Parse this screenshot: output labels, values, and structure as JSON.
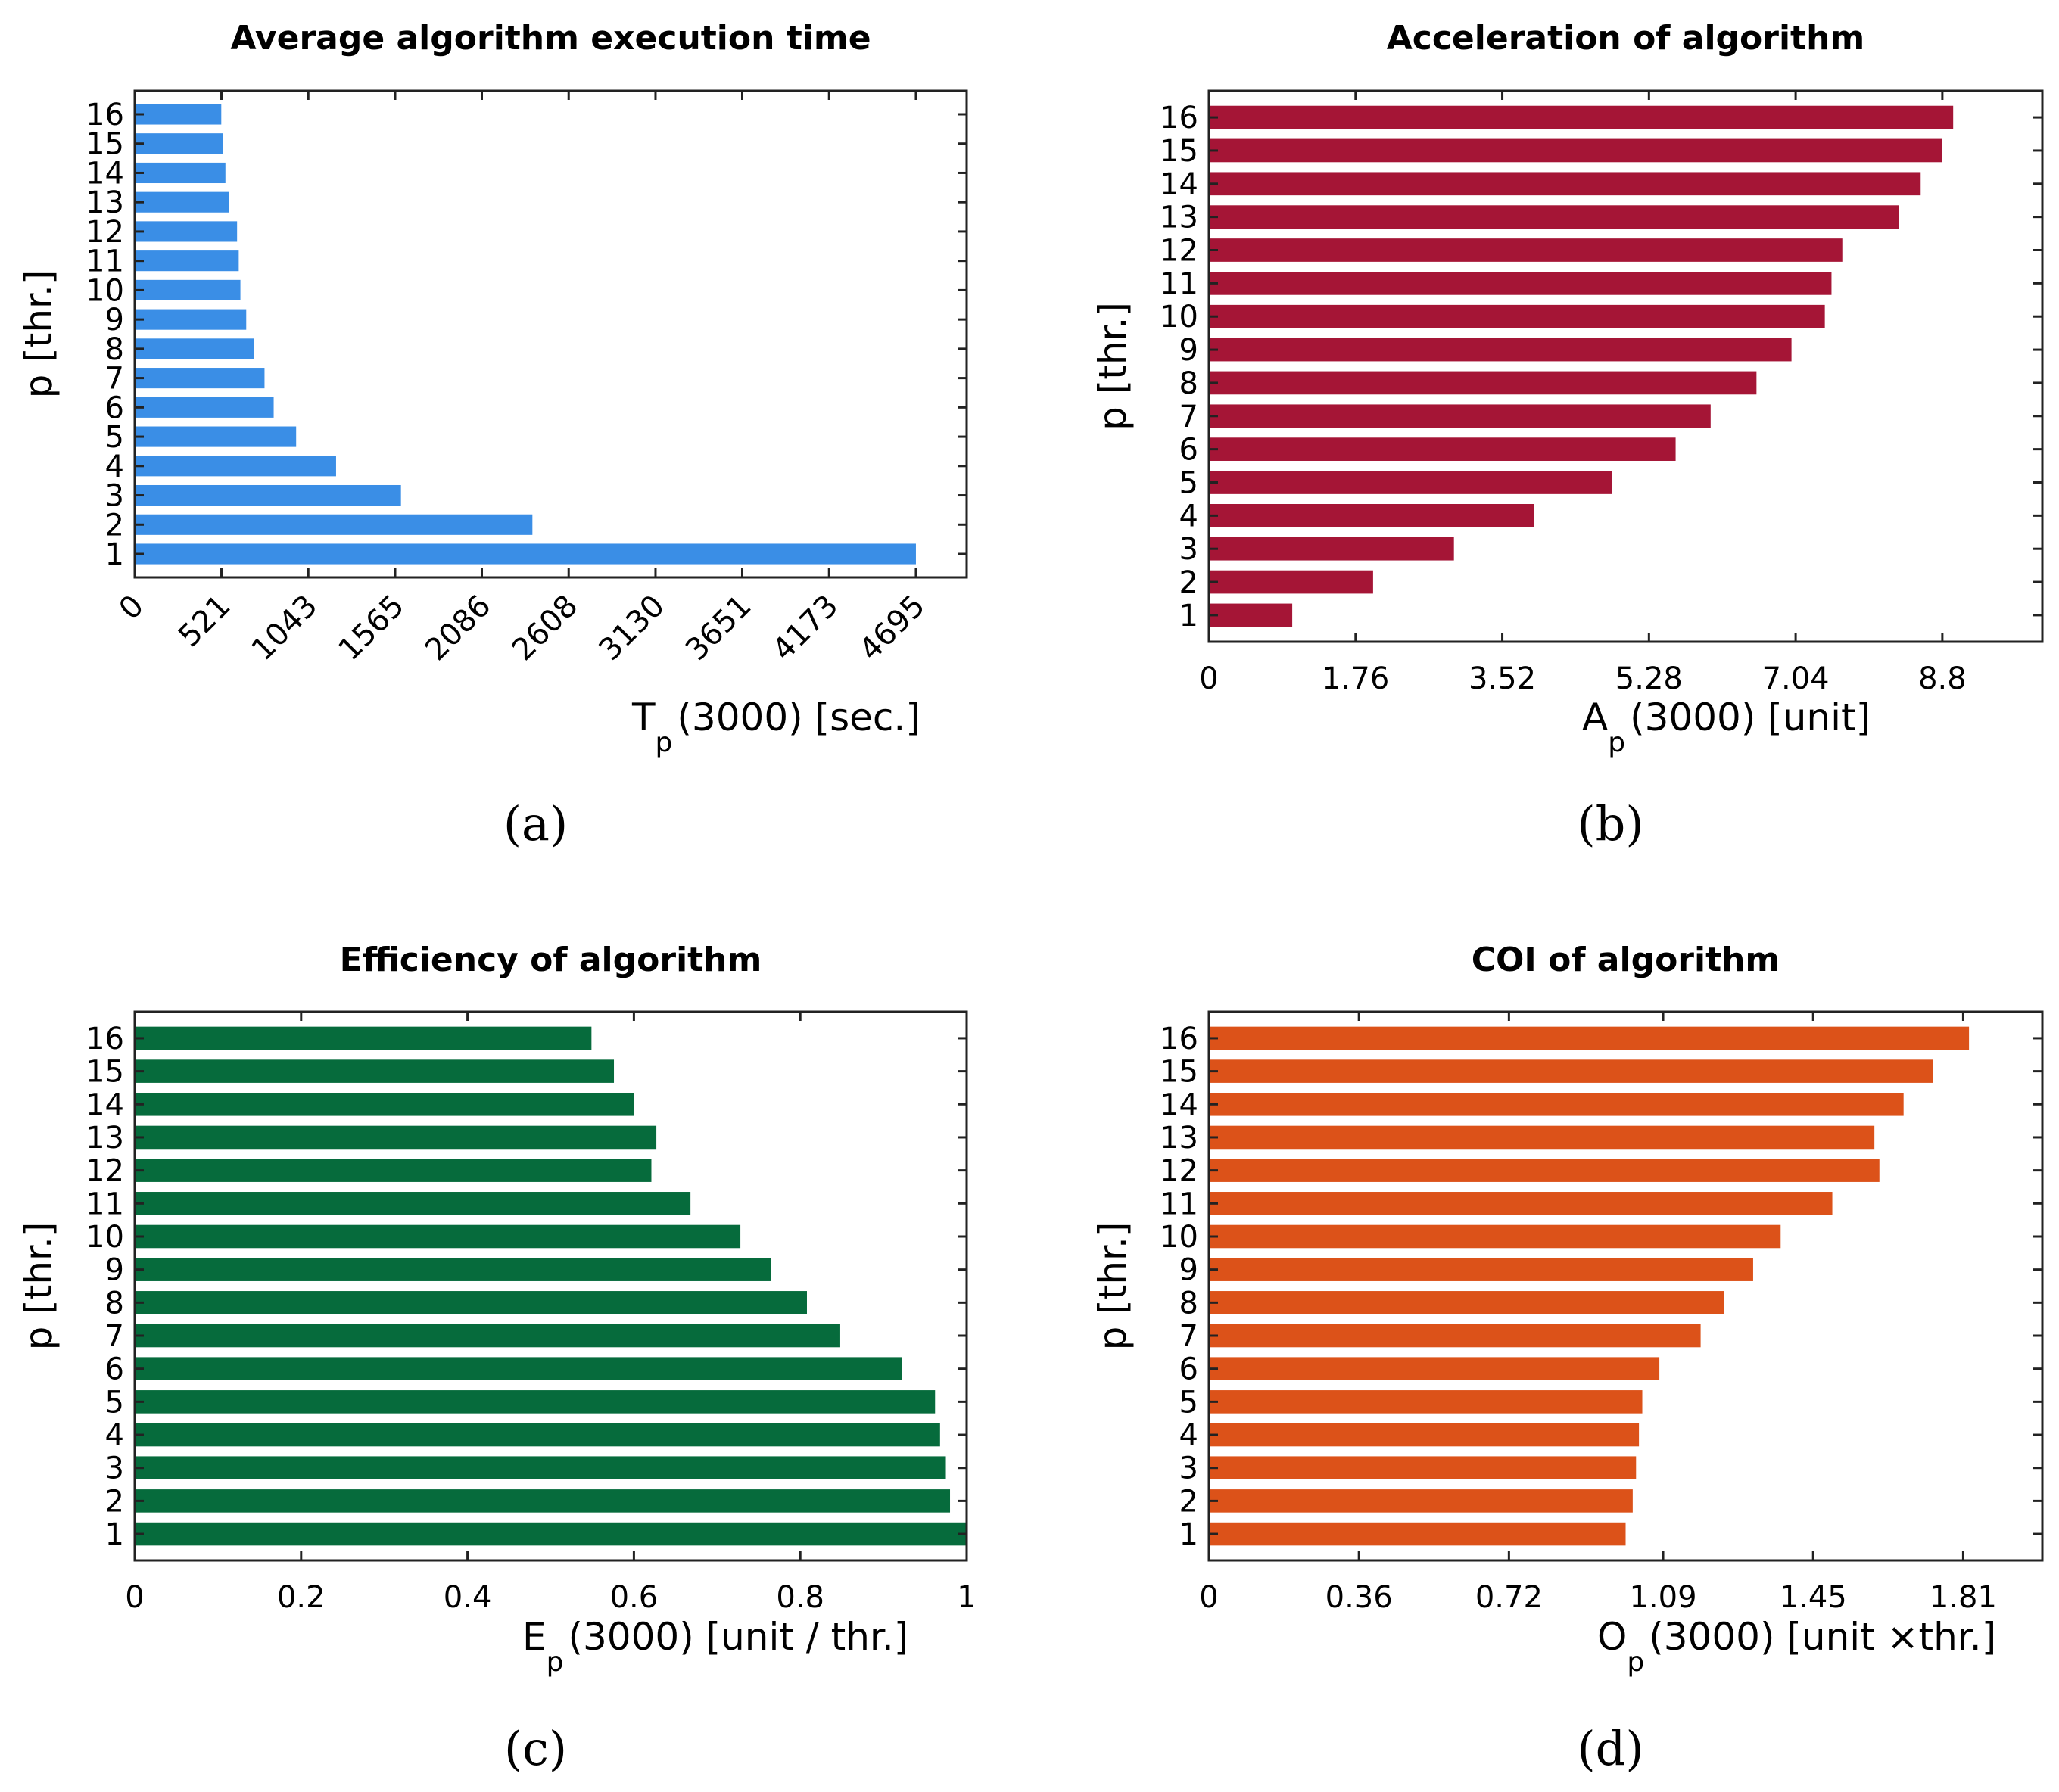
{
  "chart_data": [
    {
      "type": "bar",
      "orientation": "horizontal",
      "panel_label": "(a)",
      "title": "Average algorithm execution time",
      "xlabel": {
        "main": "T",
        "sub": "p",
        "rest": "(3000)   [sec.]"
      },
      "ylabel": "p [thr.]",
      "color": "#3a8ee6",
      "categories": [
        "1",
        "2",
        "3",
        "4",
        "5",
        "6",
        "7",
        "8",
        "9",
        "10",
        "11",
        "12",
        "13",
        "14",
        "15",
        "16"
      ],
      "values": [
        4695,
        2390,
        1600,
        1210,
        970,
        835,
        780,
        715,
        670,
        635,
        625,
        615,
        565,
        545,
        530,
        520
      ],
      "xlim": [
        0,
        5000
      ],
      "xticks": [
        0,
        521,
        1043,
        1565,
        2086,
        2608,
        3130,
        3651,
        4173,
        4695
      ],
      "xtick_labels": [
        "0",
        "521",
        "1043",
        "1565",
        "2086",
        "2608",
        "3130",
        "3651",
        "4173",
        "4695"
      ],
      "xtick_rotation": -45
    },
    {
      "type": "bar",
      "orientation": "horizontal",
      "panel_label": "(b)",
      "title": "Acceleration of algorithm",
      "xlabel": {
        "main": "A",
        "sub": "p",
        "rest": "(3000)   [unit]"
      },
      "ylabel": "p [thr.]",
      "color": "#a51536",
      "categories": [
        "1",
        "2",
        "3",
        "4",
        "5",
        "6",
        "7",
        "8",
        "9",
        "10",
        "11",
        "12",
        "13",
        "14",
        "15",
        "16"
      ],
      "values": [
        1.0,
        1.97,
        2.94,
        3.9,
        4.84,
        5.6,
        6.02,
        6.57,
        6.99,
        7.39,
        7.47,
        7.6,
        8.28,
        8.54,
        8.8,
        8.93
      ],
      "xlim": [
        0,
        10
      ],
      "xticks": [
        0,
        1.76,
        3.52,
        5.28,
        7.04,
        8.8
      ],
      "xtick_labels": [
        "0",
        "1.76",
        "3.52",
        "5.28",
        "7.04",
        "8.8"
      ],
      "xtick_rotation": 0
    },
    {
      "type": "bar",
      "orientation": "horizontal",
      "panel_label": "(c)",
      "title": "Efficiency of algorithm",
      "xlabel": {
        "main": "E",
        "sub": "p",
        "rest": "(3000)   [unit / thr.]"
      },
      "ylabel": "p [thr.]",
      "color": "#066b3c",
      "categories": [
        "1",
        "2",
        "3",
        "4",
        "5",
        "6",
        "7",
        "8",
        "9",
        "10",
        "11",
        "12",
        "13",
        "14",
        "15",
        "16"
      ],
      "values": [
        1.0,
        0.98,
        0.975,
        0.968,
        0.962,
        0.922,
        0.848,
        0.808,
        0.765,
        0.728,
        0.668,
        0.621,
        0.627,
        0.6,
        0.576,
        0.549
      ],
      "xlim": [
        0,
        1
      ],
      "xticks": [
        0,
        0.2,
        0.4,
        0.6,
        0.8,
        1
      ],
      "xtick_labels": [
        "0",
        "0.2",
        "0.4",
        "0.6",
        "0.8",
        "1"
      ],
      "xtick_rotation": 0
    },
    {
      "type": "bar",
      "orientation": "horizontal",
      "panel_label": "(d)",
      "title": "COI of algorithm",
      "xlabel": {
        "main": "O",
        "sub": "p",
        "rest": "(3000)   [unit    ×thr.]"
      },
      "ylabel": "p [thr.]",
      "color": "#dc5219",
      "categories": [
        "1",
        "2",
        "3",
        "4",
        "5",
        "6",
        "7",
        "8",
        "9",
        "10",
        "11",
        "12",
        "13",
        "14",
        "15",
        "16"
      ],
      "values": [
        1.0,
        1.017,
        1.025,
        1.032,
        1.04,
        1.081,
        1.18,
        1.236,
        1.306,
        1.372,
        1.496,
        1.609,
        1.597,
        1.667,
        1.737,
        1.824
      ],
      "xlim": [
        0,
        2
      ],
      "xticks": [
        0,
        0.36,
        0.72,
        1.09,
        1.45,
        1.81
      ],
      "xtick_labels": [
        "0",
        "0.36",
        "0.72",
        "1.09",
        "1.45",
        "1.81"
      ],
      "xtick_rotation": 0
    }
  ]
}
